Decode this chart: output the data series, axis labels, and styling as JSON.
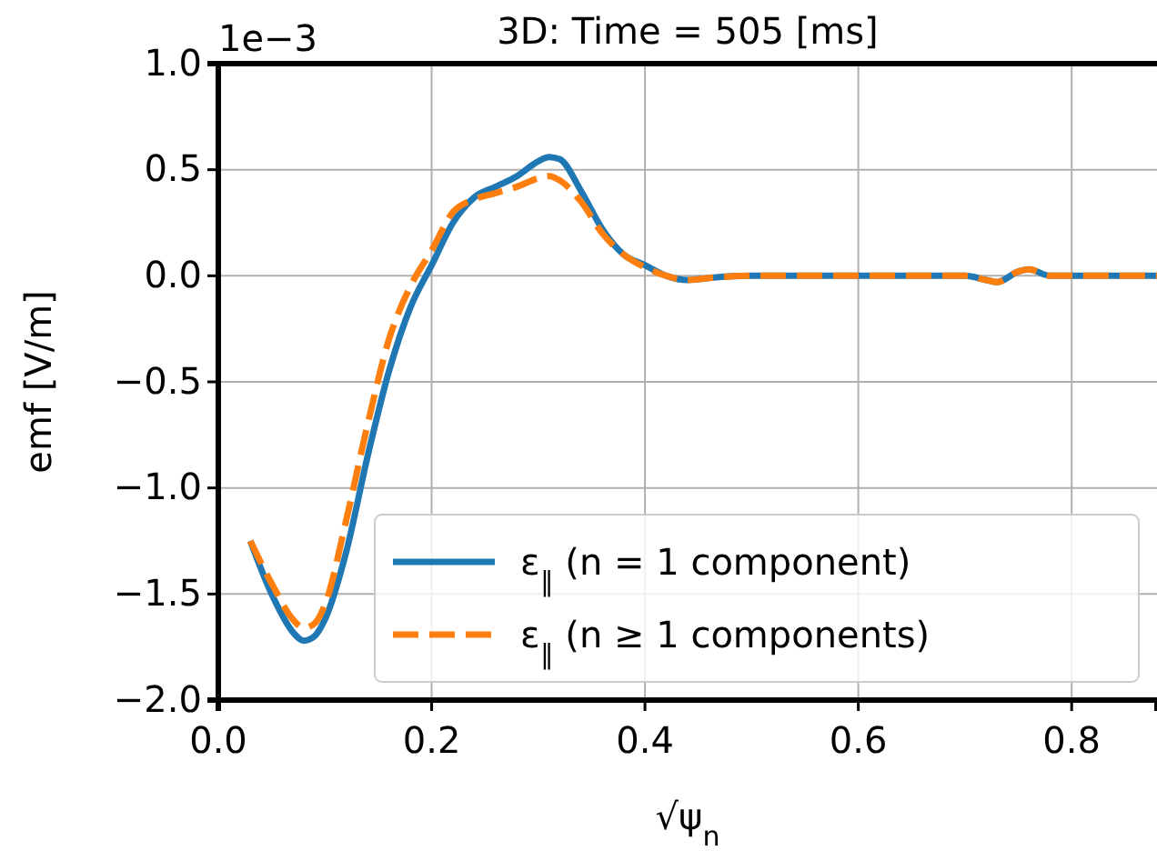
{
  "chart_data": {
    "type": "line",
    "title": "3D: Time = 505 [ms]",
    "xlabel": "√ψ$_{n}$",
    "ylabel": "emf [V/m]",
    "annotations": [
      "1e−3"
    ],
    "xlim": [
      0,
      0.88
    ],
    "ylim": [
      -2,
      1
    ],
    "xticks": [
      {
        "value": 0,
        "label": "0.0"
      },
      {
        "value": 0.2,
        "label": "0.2"
      },
      {
        "value": 0.4,
        "label": "0.4"
      },
      {
        "value": 0.6,
        "label": "0.6"
      },
      {
        "value": 0.8,
        "label": "0.8"
      }
    ],
    "yticks": [
      {
        "value": -2,
        "label": "−2.0"
      },
      {
        "value": -1.5,
        "label": "−1.5"
      },
      {
        "value": -1,
        "label": "−1.0"
      },
      {
        "value": -0.5,
        "label": "−0.5"
      },
      {
        "value": 0,
        "label": "0.0"
      },
      {
        "value": 0.5,
        "label": "0.5"
      },
      {
        "value": 1,
        "label": "1.0"
      }
    ],
    "grid": true,
    "legend": "bottom right",
    "marker": "none",
    "x": [
      0.03,
      0.05,
      0.07,
      0.08,
      0.09,
      0.1,
      0.12,
      0.14,
      0.16,
      0.18,
      0.2,
      0.22,
      0.24,
      0.26,
      0.28,
      0.3,
      0.31,
      0.32,
      0.34,
      0.36,
      0.38,
      0.4,
      0.42,
      0.44,
      0.46,
      0.5,
      0.55,
      0.6,
      0.65,
      0.7,
      0.72,
      0.73,
      0.75,
      0.76,
      0.78,
      0.88
    ],
    "series": [
      {
        "name": "ε$_{∥}$ (n = 1 component)",
        "color": "#1f77b4",
        "line_style": "solid",
        "values": [
          -1.25,
          -1.5,
          -1.68,
          -1.72,
          -1.7,
          -1.62,
          -1.3,
          -0.85,
          -0.45,
          -0.15,
          0.05,
          0.25,
          0.37,
          0.42,
          0.47,
          0.54,
          0.56,
          0.55,
          0.4,
          0.22,
          0.1,
          0.05,
          0,
          -0.02,
          -0.01,
          0,
          0,
          0,
          0,
          0,
          -0.02,
          -0.03,
          0.02,
          0.03,
          0,
          0
        ]
      },
      {
        "name": "ε$_{∥}$ (n ≥ 1 components)",
        "color": "#ff7f0e",
        "line_style": "dashed",
        "values": [
          -1.25,
          -1.45,
          -1.62,
          -1.66,
          -1.64,
          -1.55,
          -1.15,
          -0.7,
          -0.3,
          -0.05,
          0.12,
          0.3,
          0.36,
          0.39,
          0.42,
          0.46,
          0.47,
          0.45,
          0.35,
          0.2,
          0.1,
          0.04,
          0,
          -0.02,
          -0.01,
          0,
          0,
          0,
          0,
          0,
          -0.02,
          -0.03,
          0.02,
          0.03,
          0,
          0
        ]
      }
    ]
  }
}
